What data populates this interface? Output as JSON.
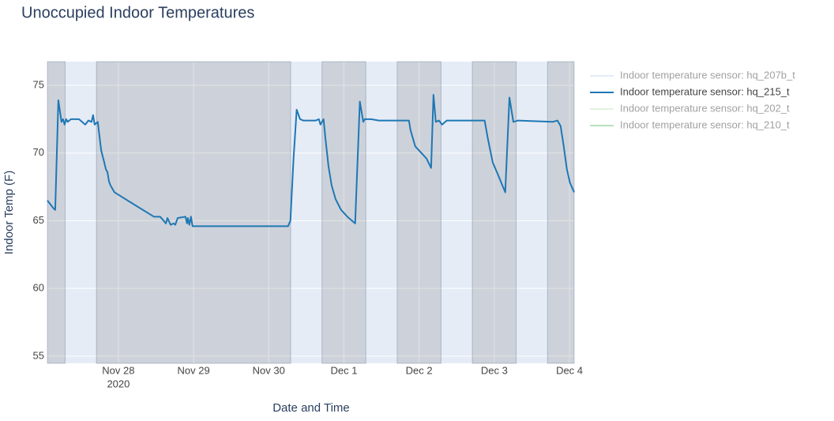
{
  "chart_data": {
    "type": "line",
    "title": "Unoccupied Indoor Temperatures",
    "x_label": "Date and Time",
    "y_label": "Indoor Temp (F)",
    "xlim": [
      "2020-11-27 01:20",
      "2020-12-04 01:30"
    ],
    "xticks": [
      {
        "value": "2020-11-28 00:00",
        "label": "Nov 28"
      },
      {
        "value": "2020-11-29 00:00",
        "label": "Nov 29"
      },
      {
        "value": "2020-11-30 00:00",
        "label": "Nov 30"
      },
      {
        "value": "2020-12-01 00:00",
        "label": "Dec 1"
      },
      {
        "value": "2020-12-02 00:00",
        "label": "Dec 2"
      },
      {
        "value": "2020-12-03 00:00",
        "label": "Dec 3"
      },
      {
        "value": "2020-12-04 00:00",
        "label": "Dec 4"
      }
    ],
    "x_year_label": "2020",
    "ylim": [
      54.47,
      76.75
    ],
    "yticks": [
      55,
      60,
      65,
      70,
      75
    ],
    "grid": true,
    "shaded_periods": [
      {
        "start": "2020-11-27 01:20",
        "end": "2020-11-27 07:00"
      },
      {
        "start": "2020-11-27 17:00",
        "end": "2020-11-30 07:00"
      },
      {
        "start": "2020-11-30 17:00",
        "end": "2020-12-01 07:00"
      },
      {
        "start": "2020-12-01 17:00",
        "end": "2020-12-02 07:00"
      },
      {
        "start": "2020-12-02 17:00",
        "end": "2020-12-03 07:00"
      },
      {
        "start": "2020-12-03 17:00",
        "end": "2020-12-04 01:30"
      }
    ],
    "legend_position": "right",
    "series": [
      {
        "name": "Indoor temperature sensor: hq_207b_t",
        "color": "#c6dbef",
        "visible": false
      },
      {
        "name": "Indoor temperature sensor: hq_215_t",
        "color": "#1f77b4",
        "visible": true,
        "x": [
          "2020-11-27 01:20",
          "2020-11-27 03:20",
          "2020-11-27 03:50",
          "2020-11-27 04:50",
          "2020-11-27 05:20",
          "2020-11-27 05:50",
          "2020-11-27 06:20",
          "2020-11-27 06:50",
          "2020-11-27 07:20",
          "2020-11-27 07:50",
          "2020-11-27 08:20",
          "2020-11-27 08:50",
          "2020-11-27 11:25",
          "2020-11-27 13:25",
          "2020-11-27 14:25",
          "2020-11-27 15:25",
          "2020-11-27 15:55",
          "2020-11-27 16:25",
          "2020-11-27 17:25",
          "2020-11-27 18:30",
          "2020-11-27 19:30",
          "2020-11-27 20:00",
          "2020-11-27 20:30",
          "2020-11-27 21:00",
          "2020-11-27 21:30",
          "2020-11-27 22:45",
          "2020-11-28 05:00",
          "2020-11-28 11:20",
          "2020-11-28 13:20",
          "2020-11-28 15:10",
          "2020-11-28 15:40",
          "2020-11-28 16:40",
          "2020-11-28 17:40",
          "2020-11-28 18:10",
          "2020-11-28 18:55",
          "2020-11-28 21:25",
          "2020-11-28 21:55",
          "2020-11-28 22:10",
          "2020-11-28 22:40",
          "2020-11-28 23:10",
          "2020-11-28 23:40",
          "2020-11-30 06:10",
          "2020-11-30 06:55",
          "2020-11-30 07:55",
          "2020-11-30 08:55",
          "2020-11-30 10:00",
          "2020-11-30 11:00",
          "2020-11-30 15:00",
          "2020-11-30 16:00",
          "2020-11-30 16:30",
          "2020-11-30 17:30",
          "2020-11-30 18:05",
          "2020-11-30 19:05",
          "2020-11-30 20:05",
          "2020-11-30 21:20",
          "2020-11-30 23:05",
          "2020-12-01 01:05",
          "2020-12-01 03:35",
          "2020-12-01 05:05",
          "2020-12-01 06:10",
          "2020-12-01 06:40",
          "2020-12-01 08:40",
          "2020-12-01 11:10",
          "2020-12-01 13:40",
          "2020-12-01 16:15",
          "2020-12-01 18:45",
          "2020-12-01 20:45",
          "2020-12-01 21:15",
          "2020-12-01 22:45",
          "2020-12-02 02:20",
          "2020-12-02 03:50",
          "2020-12-02 04:35",
          "2020-12-02 05:20",
          "2020-12-02 06:20",
          "2020-12-02 07:20",
          "2020-12-02 08:50",
          "2020-12-02 12:25",
          "2020-12-02 17:25",
          "2020-12-02 20:55",
          "2020-12-02 21:55",
          "2020-12-02 23:30",
          "2020-12-03 01:00",
          "2020-12-03 03:30",
          "2020-12-03 04:50",
          "2020-12-03 06:05",
          "2020-12-03 07:35",
          "2020-12-03 18:40",
          "2020-12-03 20:10",
          "2020-12-03 21:10",
          "2020-12-03 22:10",
          "2020-12-03 23:10",
          "2020-12-04 00:10",
          "2020-12-04 01:30"
        ],
        "values": [
          66.5,
          65.9,
          65.8,
          73.9,
          73.1,
          72.3,
          72.5,
          72.1,
          72.5,
          72.3,
          72.4,
          72.5,
          72.5,
          72.1,
          72.4,
          72.3,
          72.8,
          72.1,
          72.3,
          70.2,
          69.3,
          68.8,
          68.6,
          67.9,
          67.6,
          67.1,
          66.2,
          65.3,
          65.3,
          64.8,
          65.2,
          64.7,
          64.8,
          64.7,
          65.2,
          65.3,
          64.8,
          65.2,
          64.7,
          65.3,
          64.6,
          64.6,
          65.0,
          69.6,
          73.2,
          72.5,
          72.4,
          72.4,
          72.5,
          72.1,
          72.5,
          71.1,
          69.0,
          67.6,
          66.6,
          65.8,
          65.3,
          64.8,
          73.8,
          72.3,
          72.5,
          72.5,
          72.4,
          72.4,
          72.4,
          72.4,
          72.4,
          71.7,
          70.5,
          69.6,
          68.9,
          74.3,
          72.3,
          72.4,
          72.1,
          72.4,
          72.4,
          72.4,
          72.4,
          71.1,
          69.3,
          68.5,
          67.1,
          74.1,
          72.3,
          72.4,
          72.3,
          72.4,
          72.0,
          70.5,
          68.8,
          67.8,
          67.1
        ]
      },
      {
        "name": "Indoor temperature sensor: hq_202_t",
        "color": "#c7e9c0",
        "visible": false
      },
      {
        "name": "Indoor temperature sensor: hq_210_t",
        "color": "#74c476",
        "visible": false
      }
    ]
  }
}
